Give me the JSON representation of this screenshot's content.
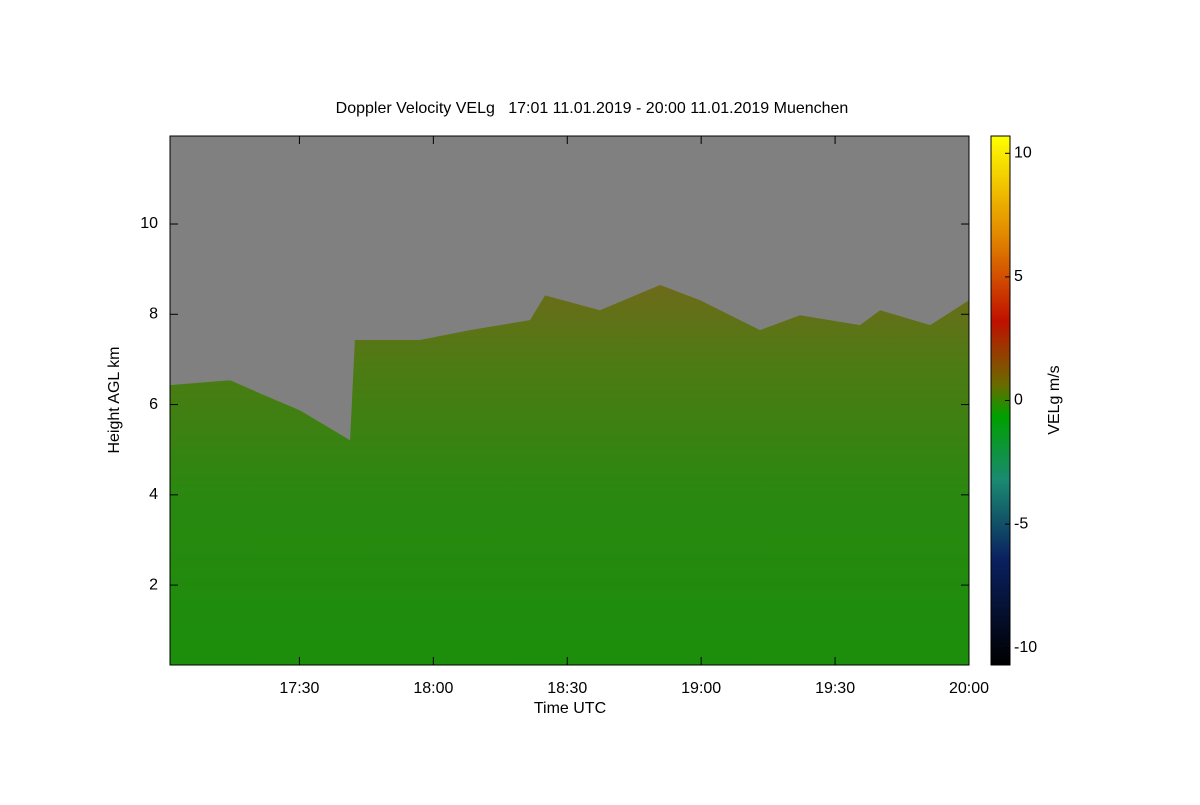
{
  "chart_data": {
    "type": "area",
    "title": "Doppler Velocity VELg   17:01 11.01.2019 - 20:00 11.01.2019 Muenchen",
    "x_label": "Time UTC",
    "y_label": "Height AGL km",
    "x": [
      17.017,
      17.241,
      17.371,
      17.502,
      17.689,
      17.707,
      17.95,
      18.137,
      18.361,
      18.417,
      18.622,
      18.847,
      18.996,
      19.22,
      19.369,
      19.593,
      19.668,
      19.855,
      20.0
    ],
    "values": [
      6.43,
      6.54,
      6.2,
      5.87,
      5.21,
      7.43,
      7.43,
      7.65,
      7.87,
      8.42,
      8.09,
      8.65,
      8.31,
      7.65,
      7.98,
      7.76,
      8.09,
      7.76,
      8.31
    ],
    "color": "#1f8a0f",
    "background": "#808080",
    "xlim": [
      17.0167,
      20.0
    ],
    "xticks": [
      {
        "value": 17.5,
        "label": "17:30"
      },
      {
        "value": 18.0,
        "label": "18:00"
      },
      {
        "value": 18.5,
        "label": "18:30"
      },
      {
        "value": 19.0,
        "label": "19:00"
      },
      {
        "value": 19.5,
        "label": "19:30"
      },
      {
        "value": 20.0,
        "label": "20:00"
      }
    ],
    "ylim": [
      0.23,
      11.95
    ],
    "yticks": [
      2,
      4,
      6,
      8,
      10
    ],
    "colorbar": {
      "label": "VELg m/s",
      "lim": [
        -10.7,
        10.7
      ],
      "ticks": [
        -10,
        -5,
        0,
        5,
        10
      ]
    }
  }
}
